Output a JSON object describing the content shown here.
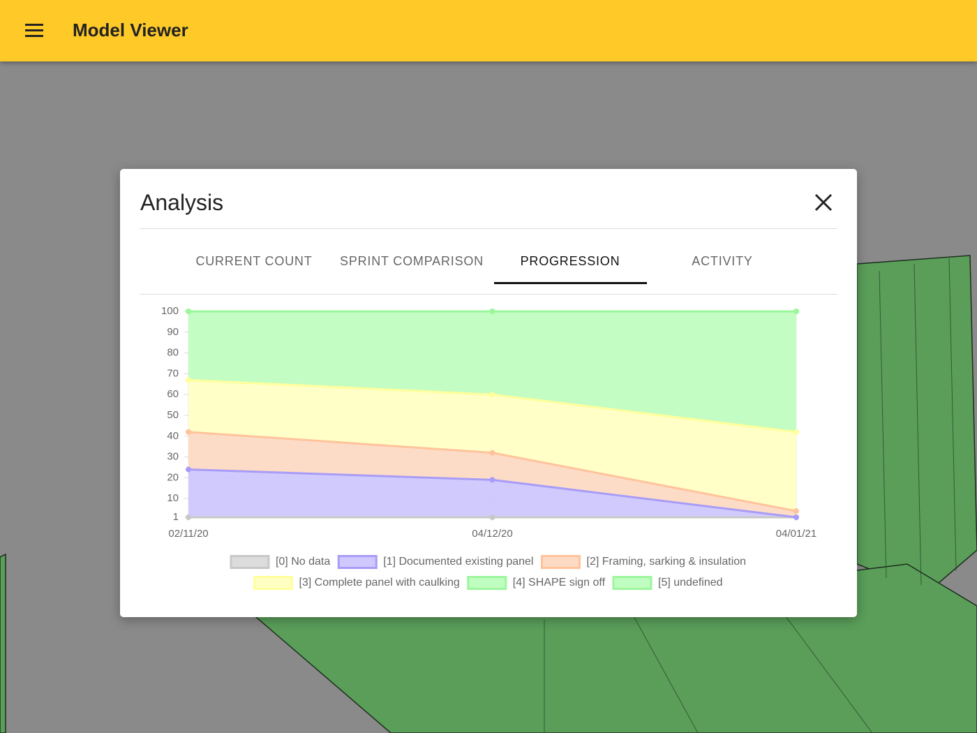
{
  "app_bar": {
    "title": "Model Viewer"
  },
  "dialog": {
    "title": "Analysis",
    "tabs": [
      "CURRENT COUNT",
      "SPRINT COMPARISON",
      "PROGRESSION",
      "ACTIVITY"
    ]
  },
  "chart_data": {
    "type": "stacked_area",
    "categories": [
      "02/11/20",
      "04/12/20",
      "04/01/21"
    ],
    "series": [
      {
        "name": "[0] No data",
        "color": "#c8c8c8",
        "fill": "#dcdcdc",
        "values": [
          0,
          0,
          0
        ]
      },
      {
        "name": "[1] Documented existing panel",
        "color": "#a89cf7",
        "fill": "#cfc8fd",
        "values": [
          24,
          19,
          1
        ]
      },
      {
        "name": "[2] Framing, sarking & insulation",
        "color": "#ffc39c",
        "fill": "#fddac4",
        "values": [
          18,
          13,
          3
        ]
      },
      {
        "name": "[3] Complete panel with caulking",
        "color": "#ffff9c",
        "fill": "#ffffc4",
        "values": [
          25,
          28,
          38
        ]
      },
      {
        "name": "[4] SHAPE sign off",
        "color": "#9cf79c",
        "fill": "#c0fdc0",
        "values": [
          33,
          40,
          58
        ]
      },
      {
        "name": "[5] undefined",
        "color": "#9cf79c",
        "fill": "#c0fdc0",
        "values": [
          0,
          0,
          0
        ]
      }
    ],
    "ylim": [
      1,
      100
    ],
    "yticks": [
      1,
      10,
      20,
      30,
      40,
      50,
      60,
      70,
      80,
      90,
      100
    ],
    "grid": true
  }
}
